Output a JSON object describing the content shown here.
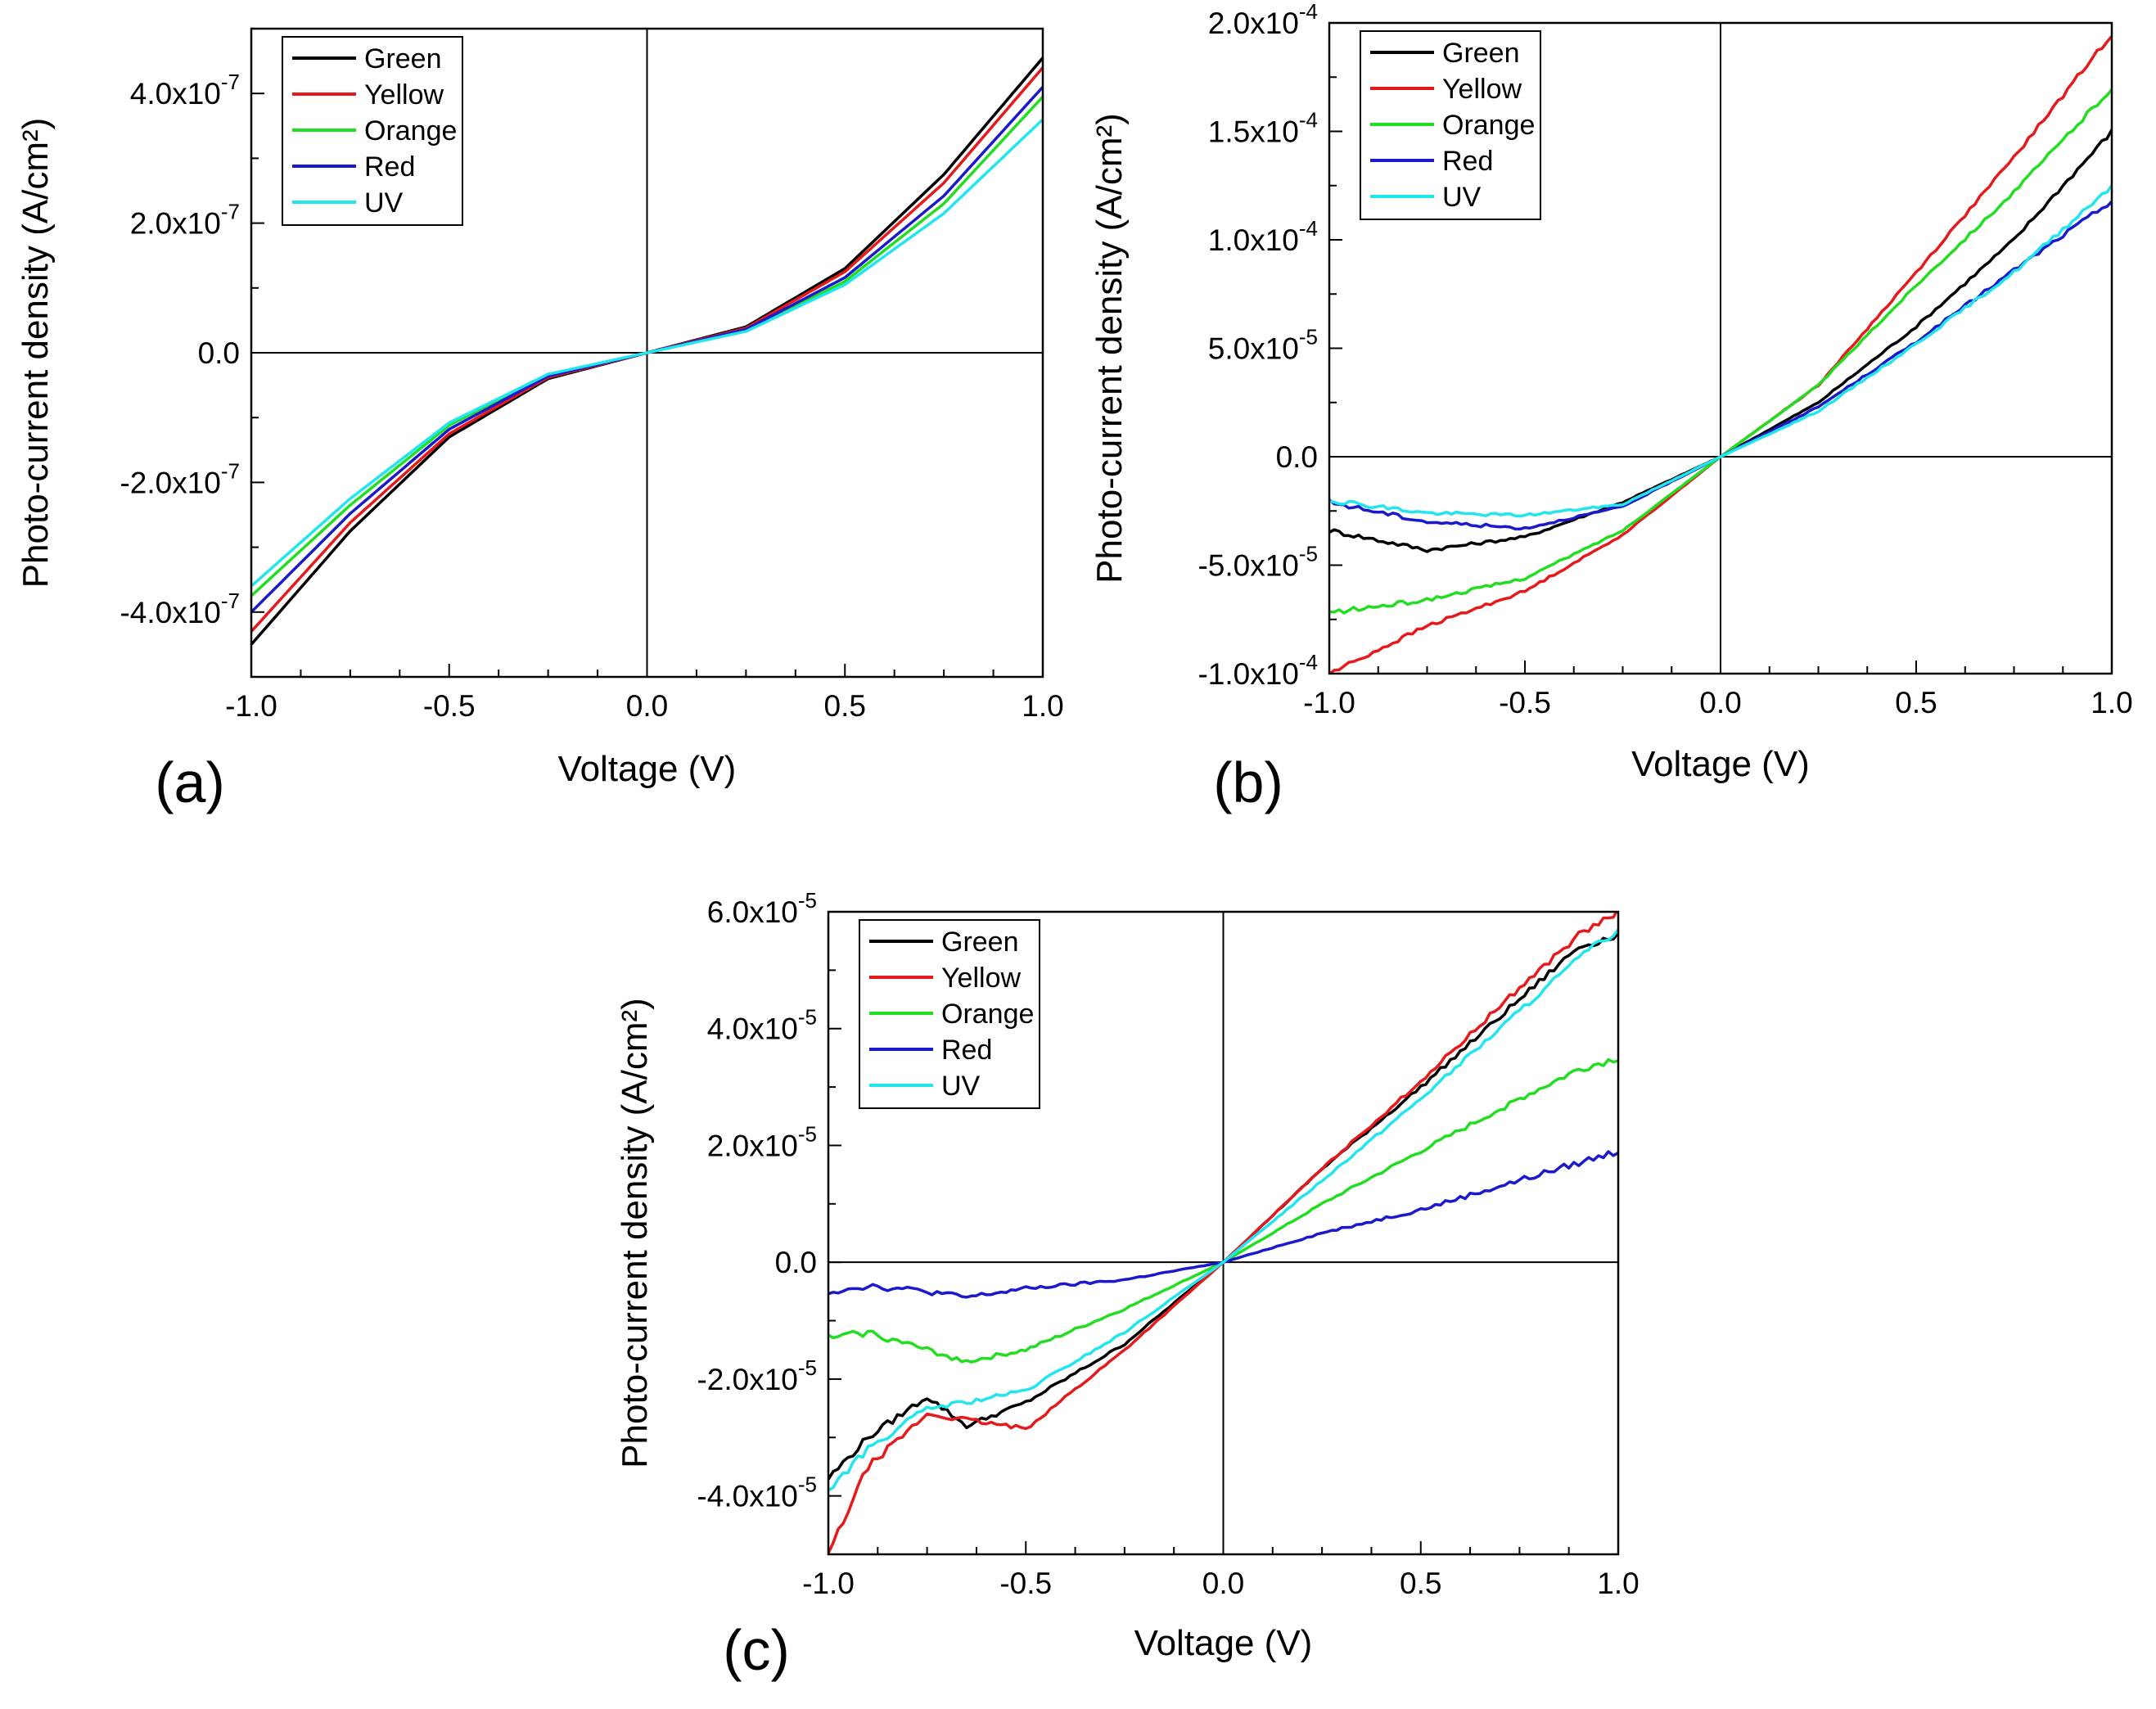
{
  "chart_data": [
    {
      "panel": "(a)",
      "type": "line",
      "xlabel": "Voltage (V)",
      "ylabel": "Photo-current density (A/cm²)",
      "xlim": [
        -1.0,
        1.0
      ],
      "ylim": [
        -5e-07,
        5e-07
      ],
      "x_ticks": [
        -1.0,
        -0.5,
        0.0,
        0.5,
        1.0
      ],
      "x_tick_labels": [
        "-1.0",
        "-0.5",
        "0.0",
        "0.5",
        "1.0"
      ],
      "y_ticks": [
        -4e-07,
        -2e-07,
        0,
        2e-07,
        4e-07
      ],
      "y_tick_labels": [
        {
          "mant": "-4.0x10",
          "exp": "-7"
        },
        {
          "mant": "-2.0x10",
          "exp": "-7"
        },
        {
          "mant": "0.0",
          "exp": ""
        },
        {
          "mant": "2.0x10",
          "exp": "-7"
        },
        {
          "mant": "4.0x10",
          "exp": "-7"
        }
      ],
      "legend": "top-left",
      "x": [
        -1.0,
        -0.75,
        -0.5,
        -0.25,
        0.0,
        0.25,
        0.5,
        0.75,
        1.0
      ],
      "series": [
        {
          "name": "Green",
          "color": "#000000",
          "values": [
            -4.5e-07,
            -2.75e-07,
            -1.3e-07,
            -4e-08,
            0,
            4e-08,
            1.3e-07,
            2.75e-07,
            4.55e-07
          ]
        },
        {
          "name": "Yellow",
          "color": "#e41a1c",
          "values": [
            -4.3e-07,
            -2.62e-07,
            -1.25e-07,
            -3.8e-08,
            0,
            3.8e-08,
            1.25e-07,
            2.62e-07,
            4.4e-07
          ]
        },
        {
          "name": "Orange",
          "color": "#22dd22",
          "values": [
            -3.75e-07,
            -2.35e-07,
            -1.12e-07,
            -3.4e-08,
            0,
            3.4e-08,
            1.1e-07,
            2.3e-07,
            3.95e-07
          ]
        },
        {
          "name": "Red",
          "color": "#1a1acc",
          "values": [
            -4e-07,
            -2.48e-07,
            -1.18e-07,
            -3.6e-08,
            0,
            3.6e-08,
            1.16e-07,
            2.42e-07,
            4.1e-07
          ]
        },
        {
          "name": "UV",
          "color": "#22e5ee",
          "values": [
            -3.6e-07,
            -2.25e-07,
            -1.08e-07,
            -3.3e-08,
            0,
            3.3e-08,
            1.05e-07,
            2.15e-07,
            3.6e-07
          ]
        }
      ]
    },
    {
      "panel": "(b)",
      "type": "line",
      "xlabel": "Voltage (V)",
      "ylabel": "Photo-current density (A/cm²)",
      "xlim": [
        -1.0,
        1.0
      ],
      "ylim": [
        -0.0001,
        0.0002
      ],
      "x_ticks": [
        -1.0,
        -0.5,
        0.0,
        0.5,
        1.0
      ],
      "x_tick_labels": [
        "-1.0",
        "-0.5",
        "0.0",
        "0.5",
        "1.0"
      ],
      "y_ticks": [
        -0.0001,
        -5e-05,
        0,
        5e-05,
        0.0001,
        0.00015,
        0.0002
      ],
      "y_tick_labels": [
        {
          "mant": "-1.0x10",
          "exp": "-4"
        },
        {
          "mant": "-5.0x10",
          "exp": "-5"
        },
        {
          "mant": "0.0",
          "exp": ""
        },
        {
          "mant": "5.0x10",
          "exp": "-5"
        },
        {
          "mant": "1.0x10",
          "exp": "-4"
        },
        {
          "mant": "1.5x10",
          "exp": "-4"
        },
        {
          "mant": "2.0x10",
          "exp": "-4"
        }
      ],
      "legend": "top-left",
      "x": [
        -1.0,
        -0.75,
        -0.5,
        -0.25,
        0.0,
        0.25,
        0.5,
        0.75,
        1.0
      ],
      "series": [
        {
          "name": "Green",
          "color": "#000000",
          "values": [
            -3.4e-05,
            -4.3e-05,
            -3.7e-05,
            -2.1e-05,
            0,
            2.5e-05,
            6e-05,
            0.0001,
            0.00015
          ]
        },
        {
          "name": "Yellow",
          "color": "#e41a1c",
          "values": [
            -0.0001,
            -7.8e-05,
            -6.2e-05,
            -3.6e-05,
            0,
            3.3e-05,
            8.5e-05,
            0.000138,
            0.000195
          ]
        },
        {
          "name": "Orange",
          "color": "#22dd22",
          "values": [
            -7.2e-05,
            -6.6e-05,
            -5.6e-05,
            -3.4e-05,
            0,
            3.3e-05,
            7.9e-05,
            0.000122,
            0.00017
          ]
        },
        {
          "name": "Red",
          "color": "#1a1acc",
          "values": [
            -2.1e-05,
            -3e-05,
            -3.3e-05,
            -2.3e-05,
            0,
            2.3e-05,
            5.3e-05,
            8.6e-05,
            0.000118
          ]
        },
        {
          "name": "UV",
          "color": "#22e5ee",
          "values": [
            -2e-05,
            -2.6e-05,
            -2.7e-05,
            -2.2e-05,
            0,
            2.1e-05,
            5.2e-05,
            8.5e-05,
            0.000125
          ]
        }
      ]
    },
    {
      "panel": "(c)",
      "type": "line",
      "xlabel": "Voltage (V)",
      "ylabel": "Photo-current density (A/cm²)",
      "xlim": [
        -1.0,
        1.0
      ],
      "ylim": [
        -5e-05,
        6e-05
      ],
      "x_ticks": [
        -1.0,
        -0.5,
        0.0,
        0.5,
        1.0
      ],
      "x_tick_labels": [
        "-1.0",
        "-0.5",
        "0.0",
        "0.5",
        "1.0"
      ],
      "y_ticks": [
        -4e-05,
        -2e-05,
        0,
        2e-05,
        4e-05,
        6e-05
      ],
      "y_tick_labels": [
        {
          "mant": "-4.0x10",
          "exp": "-5"
        },
        {
          "mant": "-2.0x10",
          "exp": "-5"
        },
        {
          "mant": "0.0",
          "exp": ""
        },
        {
          "mant": "2.0x10",
          "exp": "-5"
        },
        {
          "mant": "4.0x10",
          "exp": "-5"
        },
        {
          "mant": "6.0x10",
          "exp": "-5"
        }
      ],
      "legend": "top-left",
      "x": [
        -1.0,
        -0.9,
        -0.75,
        -0.65,
        -0.5,
        -0.25,
        0.0,
        0.25,
        0.5,
        0.75,
        0.9,
        1.0
      ],
      "series": [
        {
          "name": "Green",
          "color": "#000000",
          "values": [
            -3.7e-05,
            -3e-05,
            -2.3e-05,
            -2.8e-05,
            -2.4e-05,
            -1.4e-05,
            0,
            1.6e-05,
            3e-05,
            4.5e-05,
            5.4e-05,
            5.6e-05
          ]
        },
        {
          "name": "Yellow",
          "color": "#e41a1c",
          "values": [
            -5e-05,
            -3.5e-05,
            -2.6e-05,
            -2.7e-05,
            -2.85e-05,
            -1.5e-05,
            0,
            1.6e-05,
            3.1e-05,
            4.7e-05,
            5.6e-05,
            6e-05
          ]
        },
        {
          "name": "Orange",
          "color": "#22dd22",
          "values": [
            -1.3e-05,
            -1.2e-05,
            -1.5e-05,
            -1.7e-05,
            -1.5e-05,
            -8e-06,
            0,
            1e-05,
            1.9e-05,
            2.8e-05,
            3.3e-05,
            3.5e-05
          ]
        },
        {
          "name": "Red",
          "color": "#1a1acc",
          "values": [
            -5e-06,
            -4e-06,
            -5e-06,
            -6e-06,
            -4.5e-06,
            -3e-06,
            0,
            5e-06,
            9e-06,
            1.4e-05,
            1.7e-05,
            1.9e-05
          ]
        },
        {
          "name": "UV",
          "color": "#22e5ee",
          "values": [
            -3.9e-05,
            -3.2e-05,
            -2.5e-05,
            -2.4e-05,
            -2.2e-05,
            -1.2e-05,
            0,
            1.4e-05,
            2.8e-05,
            4.3e-05,
            5.2e-05,
            5.7e-05
          ]
        }
      ]
    }
  ]
}
